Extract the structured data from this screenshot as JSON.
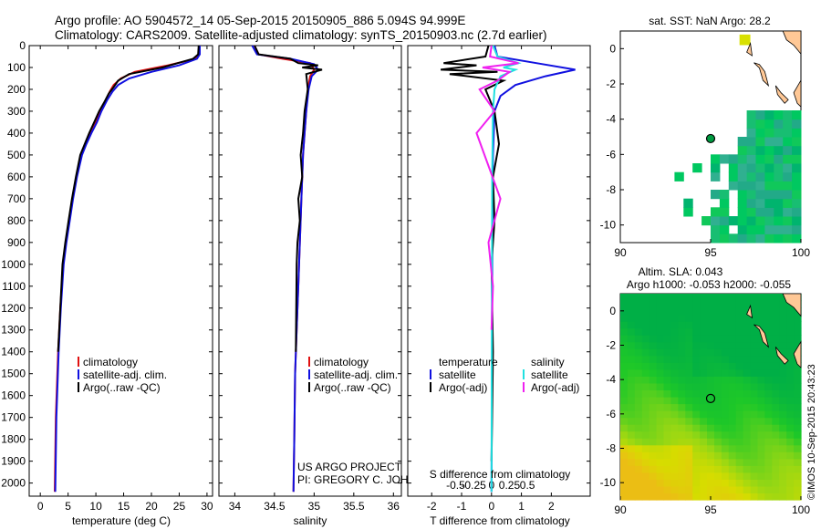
{
  "header": {
    "title_line1": "Argo profile: AO 5904572_14 05-Sep-2015 20150905_886 5.094S 94.999E",
    "title_line2": "Climatology: CARS2009. Satellite-adjusted climatology: synTS_20150903.nc (2.7d earlier)"
  },
  "colors": {
    "climatology": "#e01010",
    "satellite": "#1010e0",
    "argo": "#000000",
    "sal_satellite": "#20e0e0",
    "sal_argo": "#f020f0",
    "coast": "#ffc896"
  },
  "depth_axis": {
    "ticks": [
      "0",
      "100",
      "200",
      "300",
      "400",
      "500",
      "600",
      "700",
      "800",
      "900",
      "1000",
      "1100",
      "1200",
      "1300",
      "1400",
      "1500",
      "1600",
      "1700",
      "1800",
      "1900",
      "2000"
    ]
  },
  "chart_data": [
    {
      "type": "line",
      "name": "temperature",
      "xlabel": "temperature (deg C)",
      "xlim": [
        -2,
        31
      ],
      "xticks": [
        "0",
        "5",
        "10",
        "15",
        "20",
        "25",
        "30"
      ],
      "ylim": [
        2060,
        0
      ],
      "legend": [
        "climatology",
        "satellite-adj. clim.",
        "Argo(..raw -QC)"
      ],
      "series": [
        {
          "name": "climatology",
          "color": "#e01010",
          "x": [
            28.6,
            28.6,
            28.0,
            23,
            17,
            14.5,
            13.2,
            12.5,
            11.8,
            10.8,
            9.9,
            8.9,
            8.1,
            7.3,
            6.5,
            5.8,
            5.2,
            4.6,
            4.1,
            3.6,
            3.2,
            2.8,
            2.6
          ],
          "y": [
            0,
            40,
            60,
            90,
            120,
            150,
            180,
            210,
            250,
            300,
            350,
            400,
            450,
            500,
            600,
            700,
            800,
            900,
            1000,
            1200,
            1400,
            1700,
            2040
          ]
        },
        {
          "name": "satellite",
          "color": "#1010e0",
          "x": [
            28.7,
            28.7,
            28.2,
            25,
            20,
            16,
            14,
            13,
            12,
            11,
            10.2,
            9.2,
            8.3,
            7.5,
            6.6,
            5.9,
            5.3,
            4.7,
            4.2,
            3.7,
            3.3,
            2.9,
            2.7
          ],
          "y": [
            0,
            40,
            60,
            90,
            120,
            150,
            180,
            210,
            250,
            300,
            350,
            400,
            450,
            500,
            600,
            700,
            800,
            900,
            1000,
            1200,
            1400,
            1700,
            2040
          ]
        },
        {
          "name": "argo",
          "color": "#000000",
          "x": [
            28.5,
            28.4,
            27.5,
            22,
            16,
            14,
            13.2,
            12.3,
            11.5,
            10.6,
            9.7,
            8.8,
            8.0,
            7.2,
            6.4,
            5.7,
            5.1,
            4.5,
            4.0,
            3.6,
            3.2
          ],
          "y": [
            0,
            40,
            60,
            100,
            130,
            160,
            190,
            220,
            260,
            300,
            350,
            400,
            450,
            500,
            600,
            700,
            800,
            900,
            1000,
            1200,
            1400
          ]
        }
      ]
    },
    {
      "type": "line",
      "name": "salinity",
      "xlabel": "salinity",
      "xlim": [
        33.8,
        36.1
      ],
      "xticks": [
        "34",
        "34.5",
        "35",
        "35.5",
        "36"
      ],
      "ylim": [
        2060,
        0
      ],
      "legend": [
        "climatology",
        "satellite-adj. clim.",
        "Argo(..raw -QC)"
      ],
      "series": [
        {
          "name": "climatology",
          "color": "#e01010",
          "x": [
            34.25,
            34.3,
            34.6,
            34.95,
            35.0,
            34.95,
            34.92,
            34.9,
            34.88,
            34.86,
            34.84,
            34.82,
            34.8,
            34.78,
            34.76,
            34.75,
            34.74
          ],
          "y": [
            0,
            40,
            60,
            80,
            110,
            140,
            200,
            300,
            400,
            500,
            700,
            900,
            1100,
            1300,
            1500,
            1800,
            2040
          ]
        },
        {
          "name": "satellite",
          "color": "#1010e0",
          "x": [
            34.22,
            34.28,
            34.7,
            35.0,
            35.05,
            34.97,
            34.93,
            34.9,
            34.88,
            34.86,
            34.84,
            34.82,
            34.8,
            34.78,
            34.76,
            34.75,
            34.74
          ],
          "y": [
            0,
            40,
            60,
            85,
            110,
            140,
            200,
            300,
            400,
            500,
            700,
            900,
            1100,
            1300,
            1500,
            1800,
            2040
          ]
        },
        {
          "name": "argo",
          "color": "#000000",
          "x": [
            34.25,
            34.3,
            34.7,
            34.8,
            35.05,
            34.85,
            35.1,
            34.9,
            34.92,
            34.88,
            34.86,
            34.83,
            34.85,
            34.8,
            34.82,
            34.79,
            34.78,
            34.77
          ],
          "y": [
            0,
            40,
            60,
            80,
            90,
            100,
            110,
            130,
            200,
            300,
            400,
            500,
            600,
            700,
            800,
            900,
            1000,
            1400
          ]
        }
      ]
    },
    {
      "type": "line",
      "name": "difference from climatology",
      "xlabel": "T difference from climatology",
      "xlim": [
        -2.8,
        3.3
      ],
      "xticks": [
        "-2",
        "-1",
        "0",
        "1",
        "2"
      ],
      "sxlabel": "S difference from climatology",
      "sxticks": [
        "-0.5",
        "-0.25",
        "0",
        "0.25",
        "0.5"
      ],
      "ylim": [
        2060,
        0
      ],
      "legend_t": {
        "header": "temperature",
        "items": [
          "satellite",
          "Argo(-adj)"
        ]
      },
      "legend_s": {
        "header": "salinity",
        "items": [
          "satellite",
          "Argo(-adj)"
        ]
      },
      "series": [
        {
          "name": "T satellite",
          "color": "#1010e0",
          "x": [
            0.1,
            0.2,
            1.5,
            2.8,
            1.8,
            0.8,
            0.3,
            0.1,
            0.05,
            0.03,
            0.02,
            0.0
          ],
          "y": [
            0,
            50,
            80,
            110,
            140,
            180,
            230,
            300,
            500,
            800,
            1200,
            2040
          ]
        },
        {
          "name": "T argo",
          "color": "#000000",
          "x": [
            -0.1,
            -0.2,
            -1.6,
            -0.5,
            -1.7,
            0.2,
            -1.4,
            0.4,
            -0.2,
            0.1,
            0.25,
            0.05,
            0.1,
            0.0,
            0.05,
            0.0
          ],
          "y": [
            0,
            50,
            80,
            90,
            110,
            120,
            130,
            160,
            200,
            300,
            450,
            600,
            800,
            1000,
            1400,
            1900
          ]
        },
        {
          "name": "S satellite",
          "color": "#20e0e0",
          "x": [
            0.05,
            0.2,
            0.9,
            0.4,
            0.8,
            0.3,
            0.1,
            0.05,
            0.02,
            0.0
          ],
          "y": [
            0,
            50,
            80,
            100,
            110,
            140,
            200,
            300,
            600,
            2040
          ]
        },
        {
          "name": "S argo",
          "color": "#f020f0",
          "x": [
            0.0,
            -0.05,
            0.9,
            -0.3,
            0.6,
            0.2,
            -0.4,
            0.1,
            -0.5,
            0.3,
            -0.1,
            0.05,
            0.0
          ],
          "y": [
            0,
            50,
            80,
            100,
            120,
            160,
            200,
            300,
            400,
            700,
            900,
            1100,
            1300
          ]
        }
      ]
    },
    {
      "type": "heatmap",
      "name": "sst map",
      "title": "sat. SST: NaN Argo: 28.2",
      "xlim": [
        90,
        100
      ],
      "ylim": [
        -11,
        1
      ],
      "xticks": [
        "90",
        "95",
        "100"
      ],
      "yticks": [
        "0",
        "-2",
        "-4",
        "-6",
        "-8",
        "-10"
      ],
      "argo_location": [
        95.0,
        -5.1
      ]
    },
    {
      "type": "heatmap",
      "name": "sla map",
      "title1": "Altim. SLA: 0.043",
      "title2": "Argo h1000: -0.053 h2000: -0.055",
      "xlim": [
        90,
        100
      ],
      "ylim": [
        -11,
        1
      ],
      "xticks": [
        "90",
        "95",
        "100"
      ],
      "yticks": [
        "0",
        "-2",
        "-4",
        "-6",
        "-8",
        "-10"
      ],
      "argo_location": [
        95.0,
        -5.1
      ]
    }
  ],
  "annotations": {
    "project": "US ARGO PROJECT",
    "pi": "PI: GREGORY C. JOHNSON",
    "stamp": "©IMOS 10-Sep-2015 20:43:23"
  }
}
